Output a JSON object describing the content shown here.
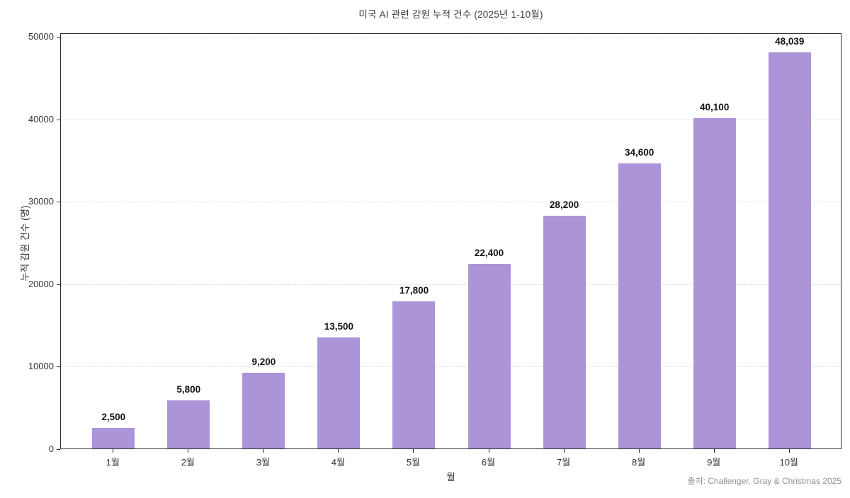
{
  "chart_data": {
    "type": "bar",
    "title": "미국 AI 관련 감원 누적 건수 (2025년 1-10월)",
    "categories": [
      "1월",
      "2월",
      "3월",
      "4월",
      "5월",
      "6월",
      "7월",
      "8월",
      "9월",
      "10월"
    ],
    "values": [
      2500,
      5800,
      9200,
      13500,
      17800,
      22400,
      28200,
      34600,
      40100,
      48039
    ],
    "value_labels": [
      "2,500",
      "5,800",
      "9,200",
      "13,500",
      "17,800",
      "22,400",
      "28,200",
      "34,600",
      "40,100",
      "48,039"
    ],
    "xlabel": "월",
    "ylabel": "누적 감원 건수 (명)",
    "ylim": [
      0,
      50440
    ],
    "yticks": [
      0,
      10000,
      20000,
      30000,
      40000,
      50000
    ],
    "ytick_labels": [
      "0",
      "10000",
      "20000",
      "30000",
      "40000",
      "50000"
    ],
    "grid": {
      "horizontal": true,
      "style": "dashed",
      "color": "#dcdcdc"
    },
    "legend": "none",
    "bar_color": "#ab94d8",
    "source_note": "출처: Challenger, Gray & Christmas 2025"
  }
}
